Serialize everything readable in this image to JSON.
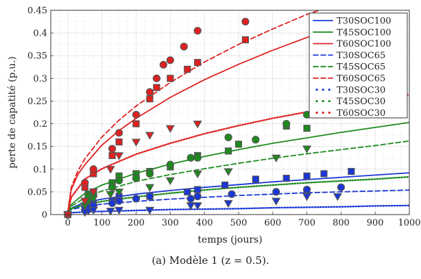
{
  "chart_data": {
    "type": "scatter",
    "xlabel": "temps (jours)",
    "ylabel": "perte de capatité (p.u.)",
    "xlim": [
      -50,
      1000
    ],
    "ylim": [
      0,
      0.45
    ],
    "xticks": [
      0,
      100,
      200,
      300,
      400,
      500,
      600,
      700,
      800,
      900,
      1000
    ],
    "yticks": [
      0,
      0.05,
      0.1,
      0.15,
      0.2,
      0.25,
      0.3,
      0.35,
      0.4,
      0.45
    ],
    "xtick_labels": [
      "0",
      "100",
      "200",
      "300",
      "400",
      "500",
      "600",
      "700",
      "800",
      "900",
      "1000"
    ],
    "ytick_labels": [
      "0",
      "0.05",
      "0.1",
      "0.15",
      "0.2",
      "0.25",
      "0.3",
      "0.35",
      "0.4",
      "0.45"
    ],
    "grid": "dotted",
    "legend_position": "top-right",
    "caption": "(a) Modèle 1 (z = 0.5).",
    "colors": {
      "T30": "#1a37d6",
      "T45": "#1d8a1d",
      "T60": "#e02020"
    },
    "model_curves": [
      {
        "name": "T30SOC100",
        "color": "T30",
        "dash": "solid",
        "x": [
          0,
          10,
          50,
          100,
          200,
          300,
          400,
          500,
          600,
          700,
          800,
          900,
          1000
        ],
        "y": [
          0.005,
          0.014,
          0.027,
          0.034,
          0.045,
          0.053,
          0.06,
          0.066,
          0.072,
          0.077,
          0.082,
          0.087,
          0.092
        ]
      },
      {
        "name": "T45SOC100",
        "color": "T45",
        "dash": "solid",
        "x": [
          0,
          10,
          50,
          100,
          200,
          300,
          400,
          500,
          600,
          700,
          800,
          900,
          1000
        ],
        "y": [
          0.005,
          0.022,
          0.047,
          0.065,
          0.091,
          0.111,
          0.128,
          0.143,
          0.157,
          0.169,
          0.181,
          0.192,
          0.203
        ]
      },
      {
        "name": "T60SOC100",
        "color": "T60",
        "dash": "solid",
        "x": [
          0,
          10,
          30,
          50,
          100,
          150,
          200,
          300,
          400,
          500,
          600,
          700,
          800
        ],
        "y": [
          0.005,
          0.055,
          0.089,
          0.11,
          0.153,
          0.185,
          0.212,
          0.258,
          0.297,
          0.331,
          0.362,
          0.39,
          0.417
        ]
      },
      {
        "name": "T30SOC65",
        "color": "T30",
        "dash": "dashed",
        "x": [
          0,
          10,
          50,
          100,
          200,
          300,
          400,
          500,
          600,
          700,
          800,
          900,
          1000
        ],
        "y": [
          0.005,
          0.011,
          0.018,
          0.023,
          0.029,
          0.034,
          0.038,
          0.042,
          0.045,
          0.048,
          0.05,
          0.052,
          0.054
        ]
      },
      {
        "name": "T45SOC65",
        "color": "T45",
        "dash": "dashed",
        "x": [
          0,
          10,
          50,
          100,
          200,
          300,
          400,
          500,
          600,
          700,
          800,
          900,
          1000
        ],
        "y": [
          0.005,
          0.018,
          0.037,
          0.052,
          0.073,
          0.088,
          0.101,
          0.113,
          0.124,
          0.134,
          0.143,
          0.152,
          0.162
        ]
      },
      {
        "name": "T60SOC65",
        "color": "T60",
        "dash": "dashed",
        "x": [
          0,
          10,
          30,
          50,
          100,
          150,
          200,
          300,
          400,
          500,
          600,
          700,
          800,
          900,
          1000
        ],
        "y": [
          0.005,
          0.06,
          0.097,
          0.123,
          0.171,
          0.208,
          0.239,
          0.291,
          0.336,
          0.375,
          0.409,
          0.441,
          0.466,
          0.488,
          0.506
        ]
      },
      {
        "name": "T30SOC30",
        "color": "T30",
        "dash": "dotted",
        "x": [
          0,
          10,
          50,
          100,
          200,
          300,
          400,
          500,
          600,
          700,
          800,
          900,
          1000
        ],
        "y": [
          0.003,
          0.004,
          0.006,
          0.007,
          0.009,
          0.011,
          0.012,
          0.013,
          0.015,
          0.016,
          0.017,
          0.019,
          0.02
        ]
      },
      {
        "name": "T45SOC30",
        "color": "T45",
        "dash": "dotted",
        "x": [
          0,
          10,
          50,
          100,
          200,
          300,
          400,
          500,
          600,
          700,
          800,
          900,
          1000
        ],
        "y": [
          0.004,
          0.013,
          0.022,
          0.029,
          0.039,
          0.047,
          0.054,
          0.06,
          0.065,
          0.07,
          0.074,
          0.078,
          0.083
        ]
      },
      {
        "name": "T60SOC30",
        "color": "T60",
        "dash": "dotted",
        "x": [
          0,
          10,
          50,
          100,
          200,
          300,
          400,
          500,
          600,
          700,
          800,
          900,
          1000
        ],
        "y": [
          0.004,
          0.038,
          0.078,
          0.101,
          0.133,
          0.157,
          0.178,
          0.196,
          0.212,
          0.226,
          0.24,
          0.252,
          0.264
        ]
      }
    ],
    "measurements": [
      {
        "color": "T30",
        "marker": "square",
        "x": [
          0,
          50,
          60,
          75,
          130,
          150,
          240,
          350,
          380,
          460,
          550,
          640,
          700,
          750,
          830
        ],
        "y": [
          0.0,
          0.015,
          0.02,
          0.025,
          0.03,
          0.04,
          0.04,
          0.05,
          0.055,
          0.065,
          0.078,
          0.08,
          0.085,
          0.09,
          0.095
        ]
      },
      {
        "color": "T30",
        "marker": "circle",
        "x": [
          0,
          60,
          75,
          130,
          150,
          200,
          240,
          360,
          380,
          480,
          610,
          700,
          800
        ],
        "y": [
          0.0,
          0.015,
          0.02,
          0.025,
          0.03,
          0.035,
          0.04,
          0.035,
          0.04,
          0.045,
          0.05,
          0.055,
          0.06
        ]
      },
      {
        "color": "T30",
        "marker": "triangle",
        "x": [
          0,
          50,
          60,
          75,
          125,
          150,
          240,
          360,
          380,
          470,
          610,
          700,
          790
        ],
        "y": [
          0.0,
          0.005,
          0.008,
          0.01,
          0.008,
          0.01,
          0.01,
          0.02,
          0.02,
          0.025,
          0.03,
          0.04,
          0.04
        ]
      },
      {
        "color": "T45",
        "marker": "square",
        "x": [
          0,
          60,
          75,
          130,
          150,
          200,
          240,
          300,
          380,
          470,
          500,
          640,
          700
        ],
        "y": [
          0.0,
          0.045,
          0.05,
          0.07,
          0.085,
          0.09,
          0.095,
          0.105,
          0.13,
          0.14,
          0.155,
          0.195,
          0.19
        ]
      },
      {
        "color": "T45",
        "marker": "circle",
        "x": [
          0,
          60,
          75,
          130,
          150,
          200,
          240,
          300,
          360,
          380,
          470,
          550,
          640,
          700
        ],
        "y": [
          0.0,
          0.04,
          0.045,
          0.06,
          0.075,
          0.08,
          0.09,
          0.11,
          0.125,
          0.125,
          0.17,
          0.165,
          0.2,
          0.22
        ]
      },
      {
        "color": "T45",
        "marker": "triangle",
        "x": [
          0,
          50,
          60,
          75,
          125,
          150,
          240,
          300,
          380,
          470,
          610,
          700
        ],
        "y": [
          0.0,
          0.02,
          0.03,
          0.035,
          0.045,
          0.05,
          0.06,
          0.075,
          0.09,
          0.095,
          0.125,
          0.145
        ]
      },
      {
        "color": "T60",
        "marker": "square",
        "x": [
          0,
          50,
          75,
          130,
          150,
          200,
          240,
          260,
          300,
          350,
          380,
          520
        ],
        "y": [
          0.0,
          0.06,
          0.09,
          0.13,
          0.16,
          0.2,
          0.255,
          0.28,
          0.3,
          0.32,
          0.335,
          0.385
        ]
      },
      {
        "color": "T60",
        "marker": "circle",
        "x": [
          0,
          50,
          75,
          130,
          150,
          200,
          240,
          260,
          280,
          300,
          340,
          380,
          520
        ],
        "y": [
          0.0,
          0.07,
          0.1,
          0.145,
          0.18,
          0.22,
          0.27,
          0.3,
          0.33,
          0.34,
          0.37,
          0.405,
          0.425
        ]
      },
      {
        "color": "T60",
        "marker": "triangle",
        "x": [
          0,
          50,
          75,
          125,
          150,
          200,
          240,
          300,
          380
        ],
        "y": [
          0.0,
          0.03,
          0.05,
          0.1,
          0.13,
          0.16,
          0.175,
          0.19,
          0.2
        ]
      }
    ]
  }
}
